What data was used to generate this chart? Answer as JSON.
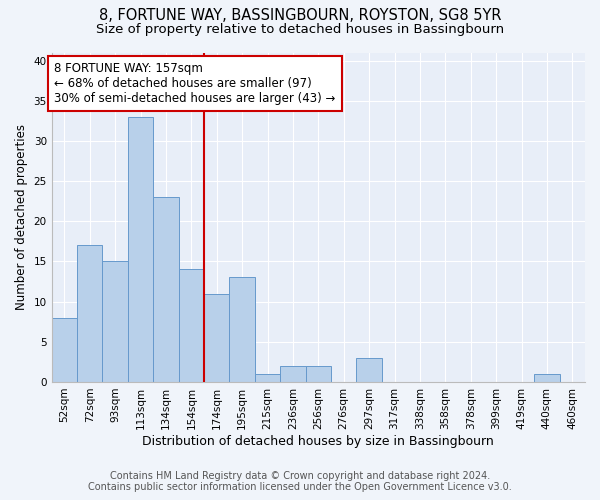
{
  "title1": "8, FORTUNE WAY, BASSINGBOURN, ROYSTON, SG8 5YR",
  "title2": "Size of property relative to detached houses in Bassingbourn",
  "xlabel": "Distribution of detached houses by size in Bassingbourn",
  "ylabel": "Number of detached properties",
  "footnote1": "Contains HM Land Registry data © Crown copyright and database right 2024.",
  "footnote2": "Contains public sector information licensed under the Open Government Licence v3.0.",
  "bar_labels": [
    "52sqm",
    "72sqm",
    "93sqm",
    "113sqm",
    "134sqm",
    "154sqm",
    "174sqm",
    "195sqm",
    "215sqm",
    "236sqm",
    "256sqm",
    "276sqm",
    "297sqm",
    "317sqm",
    "338sqm",
    "358sqm",
    "378sqm",
    "399sqm",
    "419sqm",
    "440sqm",
    "460sqm"
  ],
  "bar_values": [
    8,
    17,
    15,
    33,
    23,
    14,
    11,
    13,
    1,
    2,
    2,
    0,
    3,
    0,
    0,
    0,
    0,
    0,
    0,
    1,
    0
  ],
  "bar_color": "#b8d0ea",
  "bar_edgecolor": "#6699cc",
  "vline_x": 5.5,
  "vline_color": "#cc0000",
  "annotation_text": "8 FORTUNE WAY: 157sqm\n← 68% of detached houses are smaller (97)\n30% of semi-detached houses are larger (43) →",
  "annotation_box_edgecolor": "#cc0000",
  "annotation_box_facecolor": "#ffffff",
  "ylim": [
    0,
    41
  ],
  "yticks": [
    0,
    5,
    10,
    15,
    20,
    25,
    30,
    35,
    40
  ],
  "bg_color": "#f0f4fa",
  "plot_bg_color": "#e8eef8",
  "grid_color": "#ffffff",
  "title1_fontsize": 10.5,
  "title2_fontsize": 9.5,
  "xlabel_fontsize": 9,
  "ylabel_fontsize": 8.5,
  "tick_fontsize": 7.5,
  "footnote_fontsize": 7.0,
  "annot_fontsize": 8.5
}
